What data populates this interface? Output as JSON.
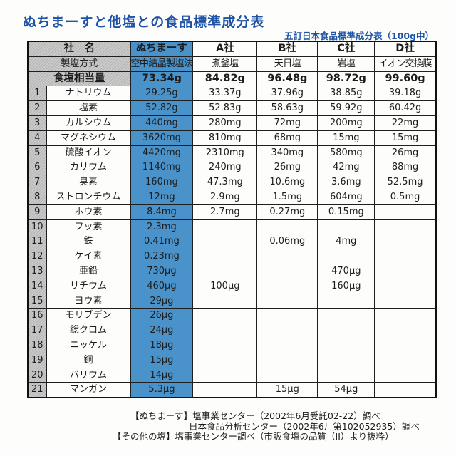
{
  "title": "ぬちまーすと他塩との食品標準成分表",
  "subtitle": "五訂日本食品標準成分表（100g中）",
  "table": {
    "corner_header": "社　名",
    "columns": [
      "ぬちまーす",
      "A社",
      "B社",
      "C社",
      "D社"
    ],
    "method_row": {
      "label": "製塩方式",
      "values": [
        "空中結晶製塩法",
        "煮釜塩",
        "天日塩",
        "岩塩",
        "イオン交換膜"
      ]
    },
    "salt_equivalent_row": {
      "label": "食塩相当量",
      "values": [
        "73.34g",
        "84.82g",
        "96.48g",
        "98.72g",
        "99.60g"
      ]
    },
    "rows": [
      {
        "no": "1",
        "name": "ナトリウム",
        "values": [
          "29.25g",
          "33.37g",
          "37.96g",
          "38.85g",
          "39.18g"
        ]
      },
      {
        "no": "2",
        "name": "塩素",
        "values": [
          "52.82g",
          "52.83g",
          "58.63g",
          "59.92g",
          "60.42g"
        ]
      },
      {
        "no": "3",
        "name": "カルシウム",
        "values": [
          "440mg",
          "280mg",
          "72mg",
          "200mg",
          "22mg"
        ]
      },
      {
        "no": "4",
        "name": "マグネシウム",
        "values": [
          "3620mg",
          "810mg",
          "68mg",
          "15mg",
          "15mg"
        ]
      },
      {
        "no": "5",
        "name": "硫酸イオン",
        "values": [
          "4420mg",
          "2310mg",
          "340mg",
          "580mg",
          "26mg"
        ]
      },
      {
        "no": "6",
        "name": "カリウム",
        "values": [
          "1140mg",
          "240mg",
          "26mg",
          "42mg",
          "88mg"
        ]
      },
      {
        "no": "7",
        "name": "臭素",
        "values": [
          "160mg",
          "47.3mg",
          "10.6mg",
          "3.6mg",
          "52.5mg"
        ]
      },
      {
        "no": "8",
        "name": "ストロンチウム",
        "values": [
          "12mg",
          "2.9mg",
          "1.5mg",
          "604mg",
          "0.5mg"
        ]
      },
      {
        "no": "9",
        "name": "ホウ素",
        "values": [
          "8.4mg",
          "2.7mg",
          "0.27mg",
          "0.15mg",
          ""
        ]
      },
      {
        "no": "10",
        "name": "フッ素",
        "values": [
          "2.3mg",
          "",
          "",
          "",
          ""
        ]
      },
      {
        "no": "11",
        "name": "鉄",
        "values": [
          "0.41mg",
          "",
          "0.06mg",
          "4mg",
          ""
        ]
      },
      {
        "no": "12",
        "name": "ケイ素",
        "values": [
          "0.23mg",
          "",
          "",
          "",
          ""
        ]
      },
      {
        "no": "13",
        "name": "亜鉛",
        "values": [
          "730μg",
          "",
          "",
          "470μg",
          ""
        ]
      },
      {
        "no": "14",
        "name": "リチウム",
        "values": [
          "460μg",
          "100μg",
          "",
          "160μg",
          ""
        ]
      },
      {
        "no": "15",
        "name": "ヨウ素",
        "values": [
          "29μg",
          "",
          "",
          "",
          ""
        ]
      },
      {
        "no": "16",
        "name": "モリブデン",
        "values": [
          "26μg",
          "",
          "",
          "",
          ""
        ]
      },
      {
        "no": "17",
        "name": "総クロム",
        "values": [
          "24μg",
          "",
          "",
          "",
          ""
        ]
      },
      {
        "no": "18",
        "name": "ニッケル",
        "values": [
          "18μg",
          "",
          "",
          "",
          ""
        ]
      },
      {
        "no": "19",
        "name": "銅",
        "values": [
          "15μg",
          "",
          "",
          "",
          ""
        ]
      },
      {
        "no": "20",
        "name": "バリウム",
        "values": [
          "14μg",
          "",
          "",
          "",
          ""
        ]
      },
      {
        "no": "21",
        "name": "マンガン",
        "values": [
          "5.3μg",
          "",
          "15μg",
          "54μg",
          ""
        ]
      }
    ]
  },
  "footer": {
    "lines": [
      "【ぬちまーす】塩事業センター（2002年6月受託02-22）調べ",
      "日本食品分析センター（2002年6月第102052935）調べ",
      "【その他の塩】塩事業センター調べ（市販食塩の品質（II）より抜粋）"
    ]
  },
  "colors": {
    "accent_blue": "#4a93ca",
    "header_gray": "#c7c7c7",
    "title_blue": "#1d52a4",
    "border_black": "#1f1f1f"
  }
}
